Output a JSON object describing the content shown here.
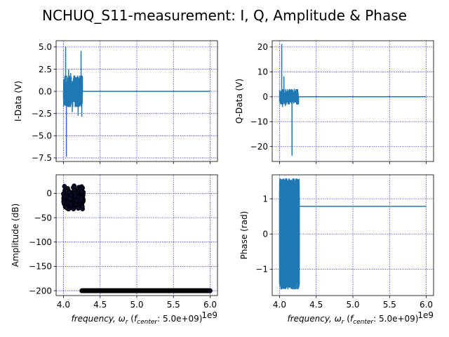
{
  "figure": {
    "title": "NCHUQ_S11-measurement: I, Q, Amplitude & Phase"
  },
  "colors": {
    "line": "#1f77b4",
    "marker": "#000000",
    "marker_fill": "#0b0b2a",
    "grid": "#0000cc"
  },
  "chart_data": [
    {
      "id": "i-data",
      "type": "line",
      "ylabel": "I-Data (V)",
      "xlabel": "",
      "xlim": [
        3.9,
        6.1
      ],
      "ylim": [
        -7.9,
        5.7
      ],
      "x_ticks": [
        4.0,
        4.5,
        5.0,
        5.5,
        6.0
      ],
      "x_ticks_labeled": false,
      "y_ticks": [
        5.0,
        2.5,
        0.0,
        -2.5,
        -5.0,
        -7.5
      ],
      "y_tick_labels": [
        "5.0",
        "2.5",
        "0.0",
        "−2.5",
        "−5.0",
        "−7.5"
      ],
      "grid": true,
      "noise_band": {
        "x_start": 4.0,
        "x_end": 4.26,
        "typical_min": -1.5,
        "typical_max": 1.5
      },
      "spikes": [
        {
          "x": 4.03,
          "y": 5.0
        },
        {
          "x": 4.04,
          "y": -7.3
        },
        {
          "x": 4.07,
          "y": 2.4
        },
        {
          "x": 4.1,
          "y": 2.0
        },
        {
          "x": 4.12,
          "y": -2.3
        },
        {
          "x": 4.2,
          "y": -2.7
        },
        {
          "x": 4.24,
          "y": 4.5
        },
        {
          "x": 4.25,
          "y": -2.8
        }
      ],
      "baseline": {
        "x_start": 4.26,
        "x_end": 6.0,
        "y": 0.0
      }
    },
    {
      "id": "q-data",
      "type": "line",
      "ylabel": "Q-Data (V)",
      "xlabel": "",
      "xlim": [
        3.9,
        6.1
      ],
      "ylim": [
        -26.0,
        22.5
      ],
      "x_ticks": [
        4.0,
        4.5,
        5.0,
        5.5,
        6.0
      ],
      "x_ticks_labeled": false,
      "y_ticks": [
        20,
        10,
        0,
        -10,
        -20
      ],
      "y_tick_labels": [
        "20",
        "10",
        "0",
        "−10",
        "−20"
      ],
      "grid": true,
      "noise_band": {
        "x_start": 4.0,
        "x_end": 4.26,
        "typical_min": -2.5,
        "typical_max": 2.5
      },
      "spikes": [
        {
          "x": 4.03,
          "y": 21.0
        },
        {
          "x": 4.04,
          "y": -4.0
        },
        {
          "x": 4.06,
          "y": 8.0
        },
        {
          "x": 4.08,
          "y": -3.5
        },
        {
          "x": 4.17,
          "y": -23.5
        },
        {
          "x": 4.2,
          "y": 3.0
        },
        {
          "x": 4.24,
          "y": -3.0
        }
      ],
      "baseline": {
        "x_start": 4.26,
        "x_end": 6.0,
        "y": 0.0
      }
    },
    {
      "id": "amplitude",
      "type": "scatter",
      "ylabel": "Amplitude (dB)",
      "xlabel": "frequency, ωr (fcenter : 5.0e+09)",
      "xlabel_parts": {
        "pre": "frequency, ",
        "omega": "ω",
        "omega_sub": "r",
        "mid": " (",
        "f": "f",
        "f_sub": "center",
        "post": ":  5.0e+09)"
      },
      "x_offset_text": "1e9",
      "xlim": [
        3.9,
        6.1
      ],
      "ylim": [
        -210.0,
        38.0
      ],
      "x_ticks": [
        4.0,
        4.5,
        5.0,
        5.5,
        6.0
      ],
      "x_tick_labels": [
        "4.0",
        "4.5",
        "5.0",
        "5.5",
        "6.0"
      ],
      "y_ticks": [
        0,
        -50,
        -100,
        -150,
        -200
      ],
      "y_tick_labels": [
        "0",
        "−50",
        "−100",
        "−150",
        "−200"
      ],
      "grid": true,
      "cluster": {
        "x_start": 4.0,
        "x_end": 4.27,
        "y_min": -32.0,
        "y_max": 28.0,
        "center": -10.0
      },
      "floor": {
        "x_start": 4.25,
        "x_end": 6.0,
        "y": -200.0
      }
    },
    {
      "id": "phase",
      "type": "line",
      "ylabel": "Phase (rad)",
      "xlabel": "frequency, ωr (fcenter : 5.0e+09)",
      "xlabel_parts": {
        "pre": "frequency, ",
        "omega": "ω",
        "omega_sub": "r",
        "mid": " (",
        "f": "f",
        "f_sub": "center",
        "post": ":  5.0e+09)"
      },
      "x_offset_text": "1e9",
      "xlim": [
        3.9,
        6.1
      ],
      "ylim": [
        -1.75,
        1.68
      ],
      "x_ticks": [
        4.0,
        4.5,
        5.0,
        5.5,
        6.0
      ],
      "x_tick_labels": [
        "4.0",
        "4.5",
        "5.0",
        "5.5",
        "6.0"
      ],
      "y_ticks": [
        1,
        0,
        -1
      ],
      "y_tick_labels": [
        "1",
        "0",
        "−1"
      ],
      "grid": true,
      "oscillation": {
        "x_start": 4.0,
        "x_end": 4.27,
        "y_min": -1.57,
        "y_max": 1.57
      },
      "baseline": {
        "x_start": 4.27,
        "x_end": 6.0,
        "y": 0.785
      }
    }
  ]
}
